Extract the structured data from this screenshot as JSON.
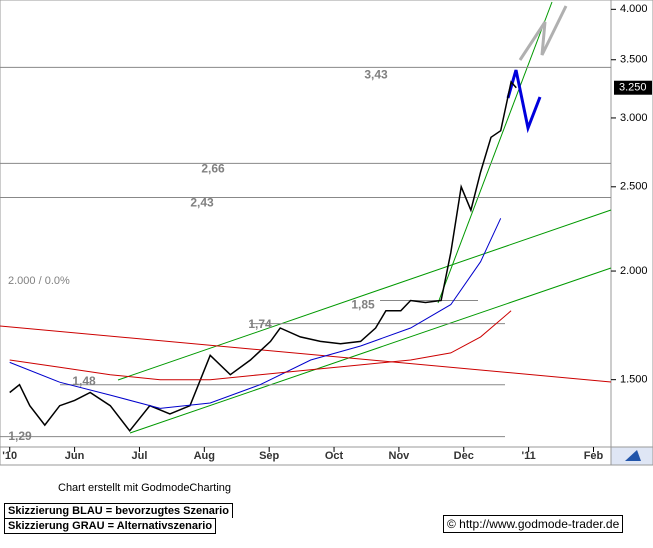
{
  "chart_data": {
    "type": "line",
    "x_axis_label_note": null,
    "xlim": [
      -0.15,
      9.27
    ],
    "xticks": [
      {
        "value": 0,
        "label": "'10"
      },
      {
        "value": 1,
        "label": "Jun"
      },
      {
        "value": 2,
        "label": "Jul"
      },
      {
        "value": 3,
        "label": "Aug"
      },
      {
        "value": 4,
        "label": "Sep"
      },
      {
        "value": 5,
        "label": "Oct"
      },
      {
        "value": 6,
        "label": "Nov"
      },
      {
        "value": 7,
        "label": "Dec"
      },
      {
        "value": 8,
        "label": "'11"
      },
      {
        "value": 9,
        "label": "Feb"
      }
    ],
    "ylim": [
      1.255,
      4.1
    ],
    "log_y": true,
    "yticks": [
      {
        "value": 1.5,
        "label": "1.500"
      },
      {
        "value": 2,
        "label": "2.000"
      },
      {
        "value": 2.5,
        "label": "2.500"
      },
      {
        "value": 3,
        "label": "3.000"
      },
      {
        "value": 3.5,
        "label": "3.500"
      },
      {
        "value": 4,
        "label": "4.000"
      }
    ],
    "last_price": {
      "value": 3.25,
      "label": "3.250"
    },
    "series": [
      {
        "color": "#000000",
        "x": [
          0,
          0.15,
          0.31,
          0.54,
          0.77,
          1,
          1.24,
          1.55,
          1.85,
          2.16,
          2.47,
          2.78,
          3.09,
          3.4,
          3.71,
          4.02,
          4.17,
          4.48,
          4.79,
          5.1,
          5.41,
          5.64,
          5.8,
          6.03,
          6.18,
          6.41,
          6.65,
          6.8,
          6.96,
          7.11,
          7.26,
          7.42,
          7.57,
          7.73,
          7.81
        ],
        "values": [
          1.45,
          1.48,
          1.4,
          1.33,
          1.4,
          1.42,
          1.45,
          1.4,
          1.31,
          1.4,
          1.37,
          1.4,
          1.6,
          1.52,
          1.58,
          1.66,
          1.72,
          1.68,
          1.66,
          1.65,
          1.66,
          1.72,
          1.8,
          1.8,
          1.85,
          1.84,
          1.85,
          2.1,
          2.5,
          2.35,
          2.6,
          2.85,
          2.9,
          3.3,
          3.25
        ]
      },
      {
        "color": "#0000cc",
        "x": [
          0,
          0.77,
          1.55,
          2.32,
          3.09,
          3.86,
          4.64,
          5.41,
          6.18,
          6.8,
          7.26,
          7.57
        ],
        "values": [
          1.57,
          1.49,
          1.44,
          1.39,
          1.41,
          1.48,
          1.58,
          1.64,
          1.72,
          1.83,
          2.05,
          2.3
        ]
      },
      {
        "color": "#cc0000",
        "x": [
          0,
          0.77,
          1.55,
          2.32,
          3.09,
          3.86,
          4.64,
          5.41,
          6.18,
          6.8,
          7.26,
          7.73
        ],
        "values": [
          1.58,
          1.55,
          1.52,
          1.5,
          1.5,
          1.52,
          1.54,
          1.56,
          1.58,
          1.61,
          1.68,
          1.8
        ]
      }
    ],
    "levels": [
      {
        "value": 3.43,
        "text": "3,43"
      },
      {
        "value": 2.66,
        "text": "2,66"
      },
      {
        "value": 2.43,
        "text": "2,43"
      },
      {
        "value": 1.85,
        "text": "1,85"
      },
      {
        "value": 1.74,
        "text": "1,74"
      },
      {
        "value": 1.48,
        "text": "1,48"
      },
      {
        "value": 1.29,
        "text": "1,29"
      }
    ],
    "base_label": "2.000 / 0.0%",
    "credit": "Chart erstellt mit GodmodeCharting",
    "legend_blue": "Skizzierung BLAU = bevorzugtes Szenario",
    "legend_grey": "Skizzierung GRAU = Alternativszenario",
    "copyright": "© http://www.godmode-trader.de"
  }
}
